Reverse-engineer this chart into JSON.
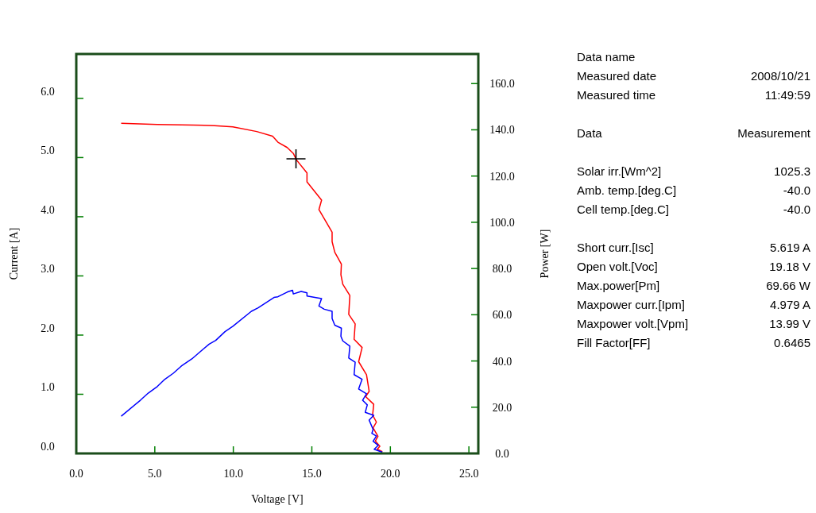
{
  "chart_data": {
    "type": "line",
    "xlabel": "Voltage [V]",
    "ylabel": "Current [A]",
    "y2label": "Power [W]",
    "xlim": [
      0,
      25.6
    ],
    "xticks": [
      {
        "value": 0,
        "label": "0.0"
      },
      {
        "value": 5,
        "label": "5.0"
      },
      {
        "value": 10,
        "label": "10.0"
      },
      {
        "value": 15,
        "label": "15.0"
      },
      {
        "value": 20,
        "label": "20.0"
      },
      {
        "value": 25,
        "label": "25.0"
      }
    ],
    "ylim": [
      0,
      6.75
    ],
    "yticks": [
      {
        "value": 0,
        "label": "0.0"
      },
      {
        "value": 1,
        "label": "1.0"
      },
      {
        "value": 2,
        "label": "2.0"
      },
      {
        "value": 3,
        "label": "3.0"
      },
      {
        "value": 4,
        "label": "4.0"
      },
      {
        "value": 5,
        "label": "5.0"
      },
      {
        "value": 6,
        "label": "6.0"
      }
    ],
    "y2lim": [
      0,
      172.8
    ],
    "y2ticks": [
      {
        "value": 0,
        "label": "0.0"
      },
      {
        "value": 20,
        "label": "20.0"
      },
      {
        "value": 40,
        "label": "40.0"
      },
      {
        "value": 60,
        "label": "60.0"
      },
      {
        "value": 80,
        "label": "80.0"
      },
      {
        "value": 100,
        "label": "100.0"
      },
      {
        "value": 120,
        "label": "120.0"
      },
      {
        "value": 140,
        "label": "140.0"
      },
      {
        "value": 160,
        "label": "160.0"
      }
    ],
    "grid": false,
    "line_style": "solid",
    "series": [
      {
        "color": "#ff0000",
        "x": [
          2.86,
          5.17,
          7.45,
          8.8,
          9.97,
          11.49,
          12.5,
          12.84,
          13.43,
          13.82,
          14.02,
          14.69,
          14.69,
          15.62,
          15.45,
          16.29,
          16.29,
          16.46,
          16.88,
          16.85,
          16.97,
          17.42,
          17.35,
          17.76,
          17.69,
          18.2,
          17.98,
          18.48,
          18.65,
          18.43,
          18.94,
          18.87,
          19.11,
          18.9,
          19.21,
          19.04,
          19.33,
          19.16,
          19.49
        ],
        "values": [
          5.58,
          5.56,
          5.55,
          5.54,
          5.52,
          5.44,
          5.36,
          5.26,
          5.17,
          5.07,
          4.96,
          4.74,
          4.59,
          4.28,
          4.12,
          3.74,
          3.58,
          3.4,
          3.2,
          3.02,
          2.86,
          2.67,
          2.35,
          2.19,
          1.93,
          1.79,
          1.55,
          1.33,
          1.05,
          0.96,
          0.83,
          0.65,
          0.53,
          0.43,
          0.29,
          0.21,
          0.12,
          0.07,
          0.03
        ]
      },
      {
        "axis": "y2",
        "color": "#0000ff",
        "x": [
          2.86,
          4.08,
          4.58,
          5.17,
          5.59,
          6.18,
          6.69,
          7.36,
          7.87,
          8.46,
          8.88,
          9.47,
          9.97,
          11.15,
          11.58,
          12.59,
          12.84,
          13.43,
          13.77,
          13.82,
          14.32,
          14.69,
          14.69,
          15.62,
          15.45,
          15.79,
          16.29,
          16.29,
          16.46,
          16.88,
          16.85,
          16.97,
          17.42,
          17.35,
          17.76,
          17.69,
          18.2,
          17.98,
          18.48,
          18.23,
          18.53,
          18.4,
          18.94,
          18.65,
          18.9,
          18.82,
          19.11,
          18.9,
          19.23,
          18.97,
          19.49
        ],
        "values": [
          16.1,
          23,
          26.1,
          29,
          31.8,
          34.7,
          37.8,
          40.9,
          43.9,
          47.3,
          48.9,
          52.7,
          55,
          61.5,
          63,
          67.5,
          67.8,
          69.8,
          70.6,
          69,
          70.1,
          69.5,
          68.1,
          67,
          63.8,
          62.4,
          61.5,
          58.4,
          55.5,
          54.2,
          50.7,
          48.7,
          46.4,
          41.3,
          39.5,
          34.1,
          32.1,
          27.9,
          25.8,
          23,
          21,
          17.8,
          16.5,
          14.4,
          10.4,
          8.7,
          7.5,
          5.3,
          3.5,
          1.8,
          0.5
        ]
      },
      {
        "type": "scatter",
        "marker": "cross",
        "color": "#000000",
        "x": [
          13.99
        ],
        "values": [
          4.979
        ]
      }
    ],
    "annotations": [
      "Data name",
      "Measured date\t2008/10/21",
      "Measured time\t11:49:59",
      "Data\tMeasurement",
      "Solar irr.[Wm^2]\t1025.3",
      "Amb. temp.[deg.C]\t-40.0",
      "Cell temp.[deg.C]\t-40.0",
      "Short curr.[Isc]\t5.619 A",
      "Open volt.[Voc]\t19.18 V",
      "Max.power[Pm]\t69.66 W",
      "Maxpower curr.[Ipm]\t4.979 A",
      "Maxpower volt.[Vpm]\t13.99 V",
      "Fill Factor[FF]\t0.6465"
    ]
  }
}
